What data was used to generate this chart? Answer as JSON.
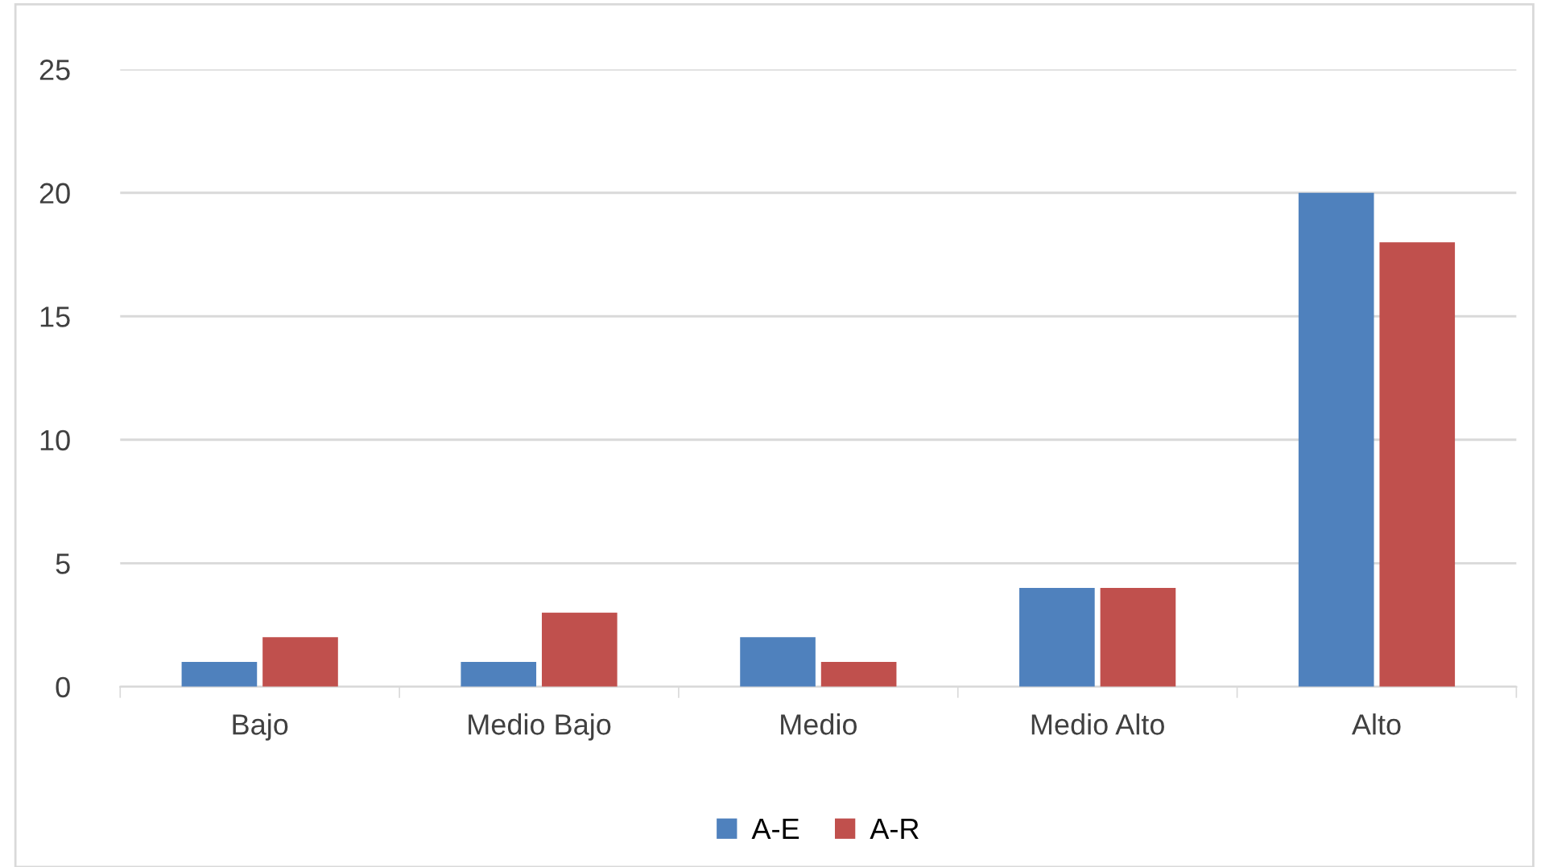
{
  "chart_data": {
    "type": "bar",
    "categories": [
      "Bajo",
      "Medio Bajo",
      "Medio",
      "Medio Alto",
      "Alto"
    ],
    "series": [
      {
        "name": "A-E",
        "color": "#4f81bd",
        "values": [
          1,
          1,
          2,
          4,
          20
        ]
      },
      {
        "name": "A-R",
        "color": "#c0504d",
        "values": [
          2,
          3,
          1,
          4,
          18
        ]
      }
    ],
    "ylim": [
      0,
      25
    ],
    "yticks": [
      0,
      5,
      10,
      15,
      20,
      25
    ],
    "grid": "y",
    "legend": "bottom"
  }
}
